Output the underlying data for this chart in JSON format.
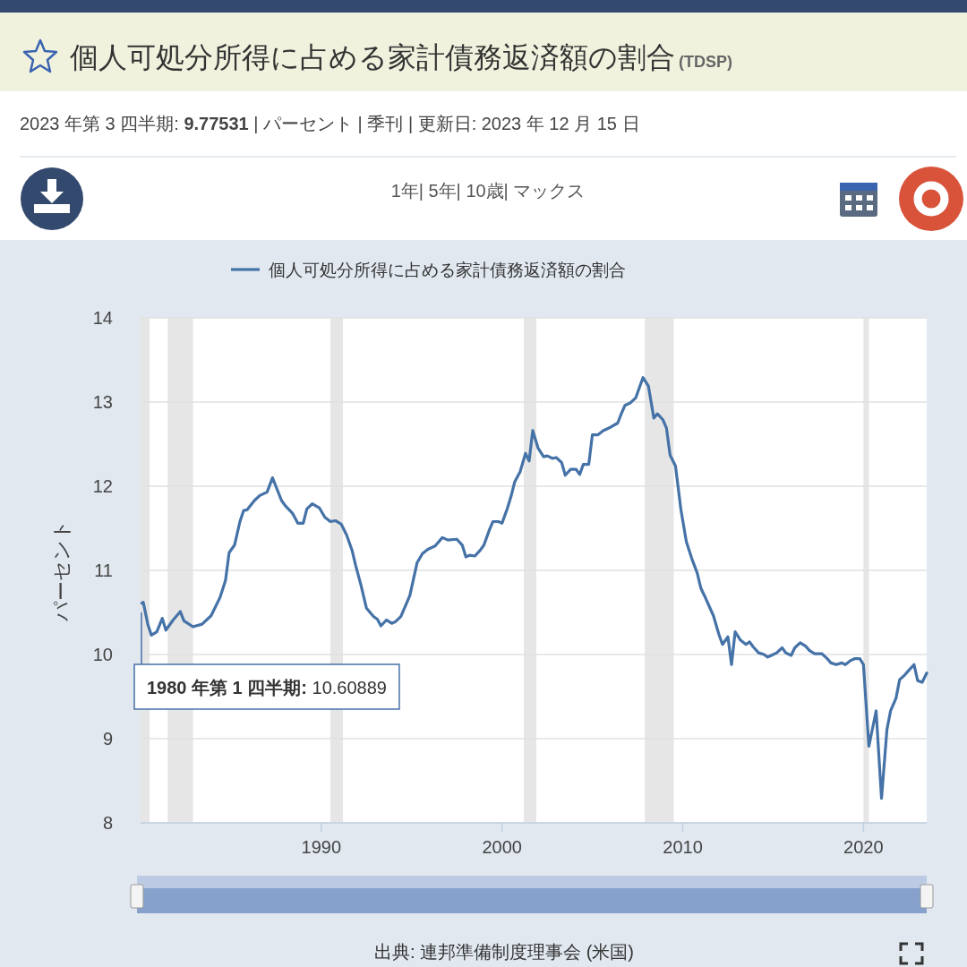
{
  "chart_data": {
    "type": "line",
    "title": "個人可処分所得に占める家計債務返済額の割合",
    "subtitle": "2023 年第 3 四半期: **9.77531** | パーセント | 季刊 | 更新日: 2023 年 12 月 15 日",
    "ylabel": "パーセント",
    "annotations": [
      "(TDSP)",
      "1年| 5年| 10歳| マックス",
      "出典: 連邦準備制度理事会 (米国)",
      "**1980 年第 1 四半期:** 10.60889"
    ],
    "xlim": [
      1980,
      2023.5
    ],
    "ylim": [
      8,
      14
    ],
    "xticks": [
      1990,
      2000,
      2010,
      2020
    ],
    "yticks": [
      8,
      9,
      10,
      11,
      12,
      13,
      14
    ],
    "grid": "y",
    "legend": "top left",
    "line_style": "solid",
    "marker": "none",
    "bands": [
      {
        "axis": "x",
        "from": 1980.0,
        "to": 1980.5,
        "color": "#e6e6e6"
      },
      {
        "axis": "x",
        "from": 1981.5,
        "to": 1982.9,
        "color": "#e6e6e6"
      },
      {
        "axis": "x",
        "from": 1990.5,
        "to": 1991.2,
        "color": "#e6e6e6"
      },
      {
        "axis": "x",
        "from": 2001.2,
        "to": 2001.9,
        "color": "#e6e6e6"
      },
      {
        "axis": "x",
        "from": 2007.9,
        "to": 2009.5,
        "color": "#e6e6e6"
      },
      {
        "axis": "x",
        "from": 2020.0,
        "to": 2020.3,
        "color": "#e6e6e6"
      }
    ],
    "series": [
      {
        "name": "個人可処分所得に占める家計債務返済額の割合",
        "color": "#4572a7",
        "x": [
          1980.07,
          1980.15,
          1980.4,
          1980.6,
          1980.9,
          1981.2,
          1981.4,
          1981.8,
          1982.2,
          1982.4,
          1982.9,
          1983.4,
          1983.9,
          1984.4,
          1984.7,
          1984.9,
          1985.2,
          1985.5,
          1985.7,
          1985.9,
          1986.3,
          1986.6,
          1987.0,
          1987.3,
          1987.8,
          1988.0,
          1988.4,
          1988.7,
          1989.0,
          1989.2,
          1989.5,
          1989.9,
          1990.2,
          1990.5,
          1990.8,
          1991.1,
          1991.4,
          1991.7,
          1991.9,
          1992.2,
          1992.5,
          1992.9,
          1993.1,
          1993.3,
          1993.6,
          1993.9,
          1994.1,
          1994.4,
          1994.7,
          1994.9,
          1995.3,
          1995.6,
          1995.9,
          1996.3,
          1996.7,
          1997.0,
          1997.5,
          1997.8,
          1998.0,
          1998.2,
          1998.5,
          1998.8,
          1999.0,
          1999.3,
          1999.5,
          1999.8,
          2000.0,
          2000.3,
          2000.5,
          2000.7,
          2001.0,
          2001.3,
          2001.5,
          2001.7,
          2002.0,
          2002.3,
          2002.5,
          2002.8,
          2003.0,
          2003.3,
          2003.5,
          2003.8,
          2004.1,
          2004.3,
          2004.5,
          2004.8,
          2005.0,
          2005.3,
          2005.6,
          2006.0,
          2006.4,
          2006.6,
          2006.8,
          2007.1,
          2007.4,
          2007.6,
          2007.8,
          2008.1,
          2008.4,
          2008.6,
          2008.9,
          2009.1,
          2009.3,
          2009.6,
          2009.9,
          2010.2,
          2010.5,
          2010.8,
          2011.0,
          2011.2,
          2011.7,
          2012.0,
          2012.2,
          2012.5,
          2012.7,
          2012.9,
          2013.2,
          2013.5,
          2013.7,
          2013.9,
          2014.2,
          2014.5,
          2014.7,
          2014.9,
          2015.2,
          2015.5,
          2015.7,
          2016.0,
          2016.2,
          2016.5,
          2016.8,
          2017.0,
          2017.3,
          2017.7,
          2018.0,
          2018.2,
          2018.5,
          2018.8,
          2019.0,
          2019.3,
          2019.5,
          2019.8,
          2020.0,
          2020.3,
          2020.7,
          2021.0,
          2021.3,
          2021.5,
          2021.8,
          2022.0,
          2022.3,
          2022.5,
          2022.8,
          2023.0,
          2023.25,
          2023.5
        ],
        "values": [
          10.61,
          10.62,
          10.36,
          10.23,
          10.27,
          10.43,
          10.29,
          10.41,
          10.51,
          10.4,
          10.33,
          10.36,
          10.46,
          10.68,
          10.88,
          11.21,
          11.3,
          11.58,
          11.71,
          11.72,
          11.83,
          11.89,
          11.93,
          12.1,
          11.83,
          11.77,
          11.68,
          11.56,
          11.56,
          11.73,
          11.79,
          11.74,
          11.63,
          11.58,
          11.59,
          11.55,
          11.42,
          11.24,
          11.06,
          10.82,
          10.55,
          10.45,
          10.42,
          10.34,
          10.41,
          10.37,
          10.39,
          10.45,
          10.6,
          10.7,
          11.09,
          11.2,
          11.25,
          11.29,
          11.39,
          11.36,
          11.37,
          11.3,
          11.16,
          11.18,
          11.17,
          11.24,
          11.3,
          11.48,
          11.58,
          11.58,
          11.56,
          11.74,
          11.88,
          12.05,
          12.17,
          12.39,
          12.3,
          12.66,
          12.45,
          12.35,
          12.36,
          12.33,
          12.34,
          12.28,
          12.13,
          12.2,
          12.2,
          12.14,
          12.26,
          12.26,
          12.61,
          12.61,
          12.66,
          12.7,
          12.75,
          12.86,
          12.96,
          12.99,
          13.05,
          13.17,
          13.29,
          13.19,
          12.81,
          12.86,
          12.79,
          12.69,
          12.37,
          12.24,
          11.72,
          11.34,
          11.14,
          10.97,
          10.79,
          10.7,
          10.46,
          10.24,
          10.12,
          10.21,
          9.88,
          10.27,
          10.17,
          10.12,
          10.15,
          10.09,
          10.02,
          10.0,
          9.97,
          9.99,
          10.02,
          10.08,
          10.02,
          9.99,
          10.08,
          10.14,
          10.1,
          10.05,
          10.01,
          10.01,
          9.95,
          9.9,
          9.88,
          9.9,
          9.88,
          9.93,
          9.95,
          9.95,
          9.88,
          8.91,
          9.33,
          8.29,
          9.11,
          9.33,
          9.48,
          9.7,
          9.76,
          9.81,
          9.88,
          9.69,
          9.67,
          9.78
        ]
      }
    ]
  }
}
